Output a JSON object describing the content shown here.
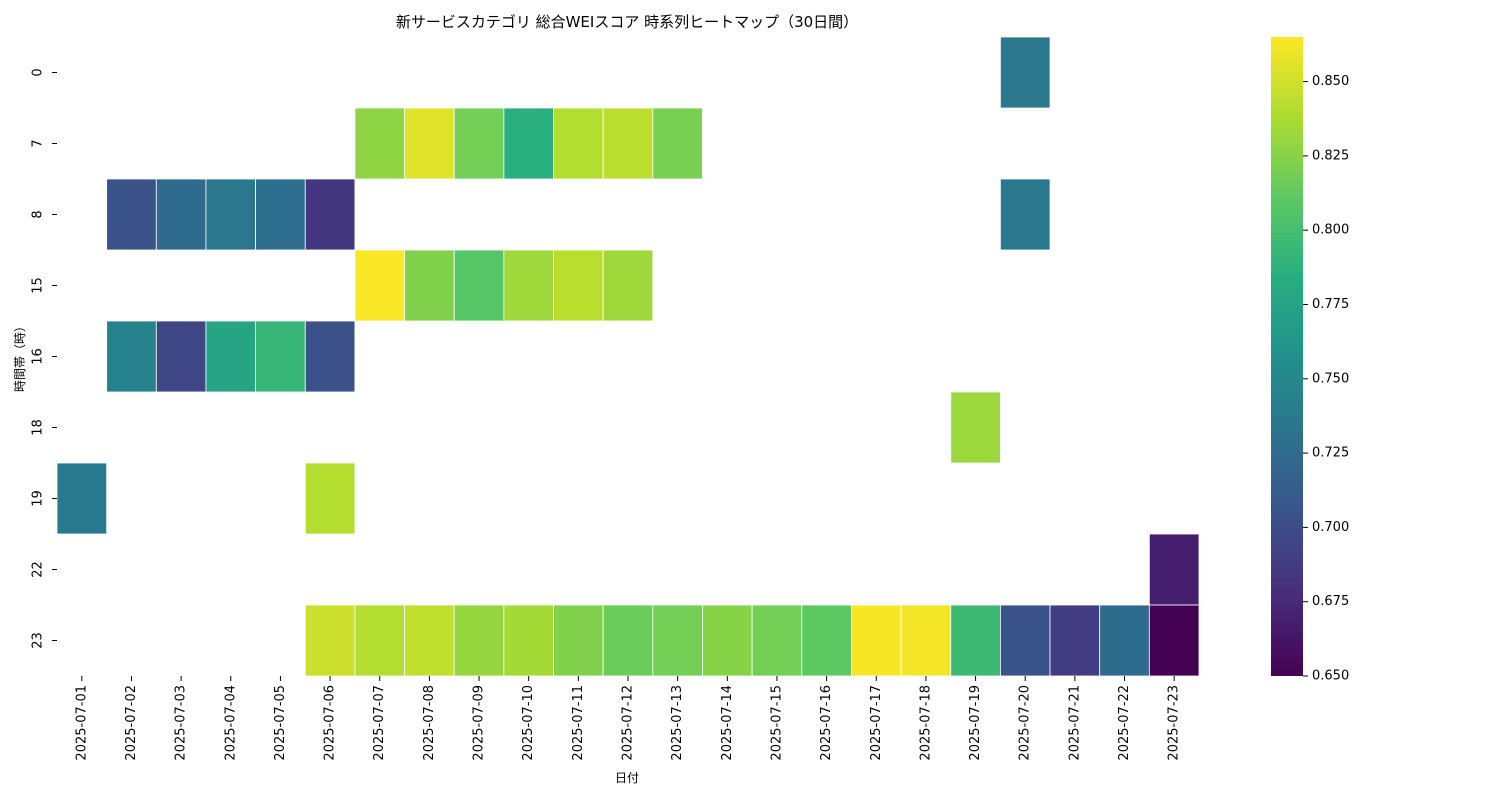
{
  "chart_data": {
    "type": "heatmap",
    "title": "新サービスカテゴリ 総合WEIスコア 時系列ヒートマップ（30日間）",
    "xlabel": "日付",
    "ylabel": "時間帯（時）",
    "x_categories": [
      "2025-07-01",
      "2025-07-02",
      "2025-07-03",
      "2025-07-04",
      "2025-07-05",
      "2025-07-06",
      "2025-07-07",
      "2025-07-08",
      "2025-07-09",
      "2025-07-10",
      "2025-07-11",
      "2025-07-12",
      "2025-07-13",
      "2025-07-14",
      "2025-07-15",
      "2025-07-16",
      "2025-07-17",
      "2025-07-18",
      "2025-07-19",
      "2025-07-20",
      "2025-07-21",
      "2025-07-22",
      "2025-07-23"
    ],
    "y_categories": [
      "0",
      "7",
      "8",
      "15",
      "16",
      "18",
      "19",
      "22",
      "23"
    ],
    "values": [
      [
        null,
        null,
        null,
        null,
        null,
        null,
        null,
        null,
        null,
        null,
        null,
        null,
        null,
        null,
        null,
        null,
        null,
        null,
        null,
        0.735,
        null,
        null,
        null
      ],
      [
        null,
        null,
        null,
        null,
        null,
        null,
        0.828,
        0.855,
        0.818,
        0.785,
        0.84,
        0.843,
        0.82,
        null,
        null,
        null,
        null,
        null,
        null,
        null,
        null,
        null,
        null
      ],
      [
        null,
        0.705,
        0.725,
        0.735,
        0.727,
        0.685,
        null,
        null,
        null,
        null,
        null,
        null,
        null,
        null,
        null,
        null,
        null,
        null,
        null,
        0.735,
        null,
        null,
        null
      ],
      [
        null,
        null,
        null,
        null,
        null,
        null,
        0.864,
        0.823,
        0.808,
        0.833,
        0.842,
        0.833,
        null,
        null,
        null,
        null,
        null,
        null,
        null,
        null,
        null,
        null,
        null
      ],
      [
        null,
        0.745,
        0.695,
        0.775,
        0.792,
        0.702,
        null,
        null,
        null,
        null,
        null,
        null,
        null,
        null,
        null,
        null,
        null,
        null,
        null,
        null,
        null,
        null,
        null
      ],
      [
        null,
        null,
        null,
        null,
        null,
        null,
        null,
        null,
        null,
        null,
        null,
        null,
        null,
        null,
        null,
        null,
        null,
        null,
        0.832,
        null,
        null,
        null,
        null
      ],
      [
        0.737,
        null,
        null,
        null,
        null,
        0.84,
        null,
        null,
        null,
        null,
        null,
        null,
        null,
        null,
        null,
        null,
        null,
        null,
        null,
        null,
        null,
        null,
        null
      ],
      [
        null,
        null,
        null,
        null,
        null,
        null,
        null,
        null,
        null,
        null,
        null,
        null,
        null,
        null,
        null,
        null,
        null,
        null,
        null,
        null,
        null,
        null,
        0.668
      ],
      [
        null,
        null,
        null,
        null,
        null,
        0.848,
        0.84,
        0.845,
        0.83,
        0.835,
        0.823,
        0.815,
        0.818,
        0.825,
        0.818,
        0.811,
        0.863,
        0.862,
        0.795,
        0.705,
        0.688,
        0.725,
        0.65
      ]
    ],
    "colorbar": {
      "min": 0.65,
      "max": 0.865,
      "ticks": [
        "0.650",
        "0.675",
        "0.700",
        "0.725",
        "0.750",
        "0.775",
        "0.800",
        "0.825",
        "0.850"
      ]
    },
    "colormap": "viridis",
    "grid": false,
    "legend": "colorbar-right"
  }
}
